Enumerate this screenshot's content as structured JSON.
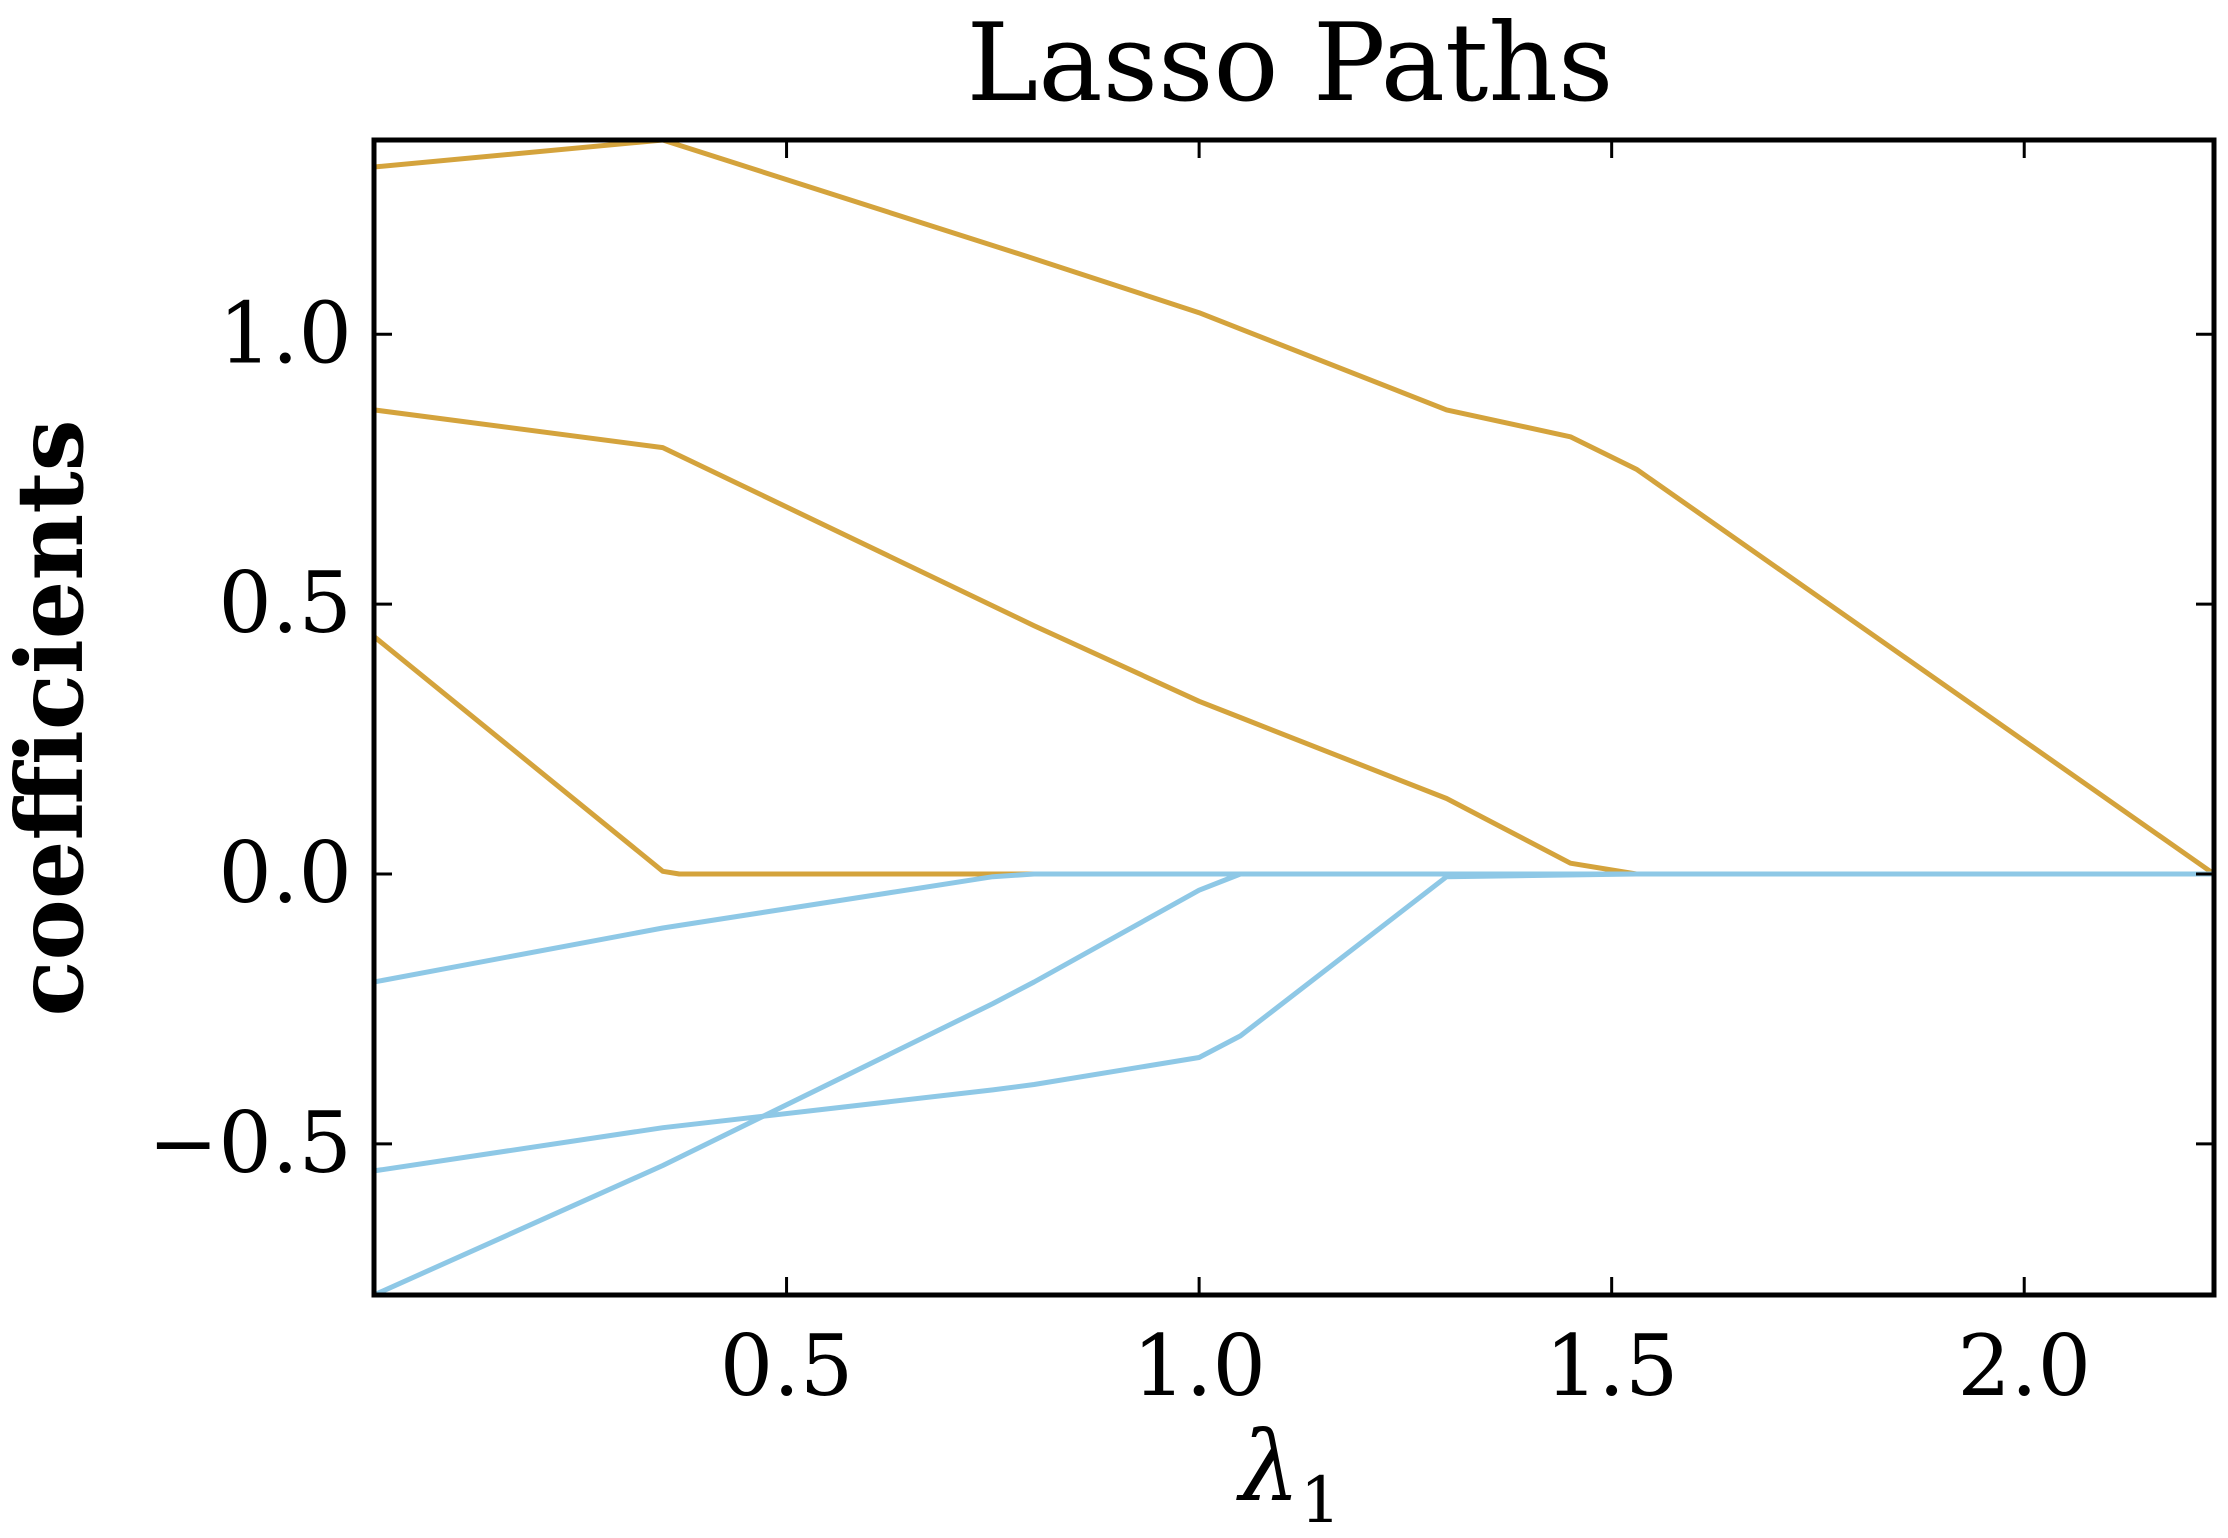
{
  "chart_data": {
    "type": "line",
    "title": "Lasso Paths",
    "xlabel": "λ",
    "xlabel_subscript": "1",
    "ylabel": "coefficients",
    "xlim": [
      0.0,
      2.23
    ],
    "ylim": [
      -0.78,
      1.36
    ],
    "xticks": [
      0.5,
      1.0,
      1.5,
      2.0
    ],
    "xtick_labels": [
      "0.5",
      "1.0",
      "1.5",
      "2.0"
    ],
    "yticks": [
      -0.5,
      0.0,
      0.5,
      1.0
    ],
    "ytick_labels": [
      "−0.5",
      "0.0",
      "0.5",
      "1.0"
    ],
    "grid": false,
    "colors": {
      "positive": "#D4A33C",
      "negative": "#8EC8E6"
    },
    "series": [
      {
        "color_key": "positive",
        "x": [
          0.0,
          0.35,
          0.8,
          1.0,
          1.05,
          1.3,
          1.45,
          1.53,
          2.23
        ],
        "y": [
          1.31,
          1.36,
          1.14,
          1.04,
          1.01,
          0.86,
          0.81,
          0.75,
          0.0
        ]
      },
      {
        "color_key": "positive",
        "x": [
          0.0,
          0.35,
          0.8,
          1.0,
          1.05,
          1.3,
          1.45,
          1.53,
          2.23
        ],
        "y": [
          0.86,
          0.79,
          0.46,
          0.32,
          0.29,
          0.14,
          0.02,
          0.0,
          0.0
        ]
      },
      {
        "color_key": "positive",
        "x": [
          0.0,
          0.35,
          0.37,
          0.8,
          1.05,
          1.3,
          1.53,
          2.23
        ],
        "y": [
          0.44,
          0.005,
          0.0,
          0.0,
          0.0,
          0.0,
          0.0,
          0.0
        ]
      },
      {
        "color_key": "negative",
        "x": [
          0.0,
          0.35,
          0.75,
          0.8,
          1.05,
          1.3,
          1.53,
          2.23
        ],
        "y": [
          -0.2,
          -0.1,
          -0.005,
          0.0,
          0.0,
          0.0,
          0.0,
          0.0
        ]
      },
      {
        "color_key": "negative",
        "x": [
          0.0,
          0.35,
          0.75,
          0.8,
          1.0,
          1.05,
          1.3,
          1.53,
          2.23
        ],
        "y": [
          -0.55,
          -0.47,
          -0.4,
          -0.39,
          -0.34,
          -0.3,
          -0.005,
          0.0,
          0.0
        ]
      },
      {
        "color_key": "negative",
        "x": [
          0.0,
          0.35,
          0.75,
          0.8,
          1.0,
          1.05,
          1.3,
          1.53,
          2.23
        ],
        "y": [
          -0.78,
          -0.54,
          -0.24,
          -0.2,
          -0.03,
          0.0,
          0.0,
          0.0,
          0.0
        ]
      }
    ]
  }
}
